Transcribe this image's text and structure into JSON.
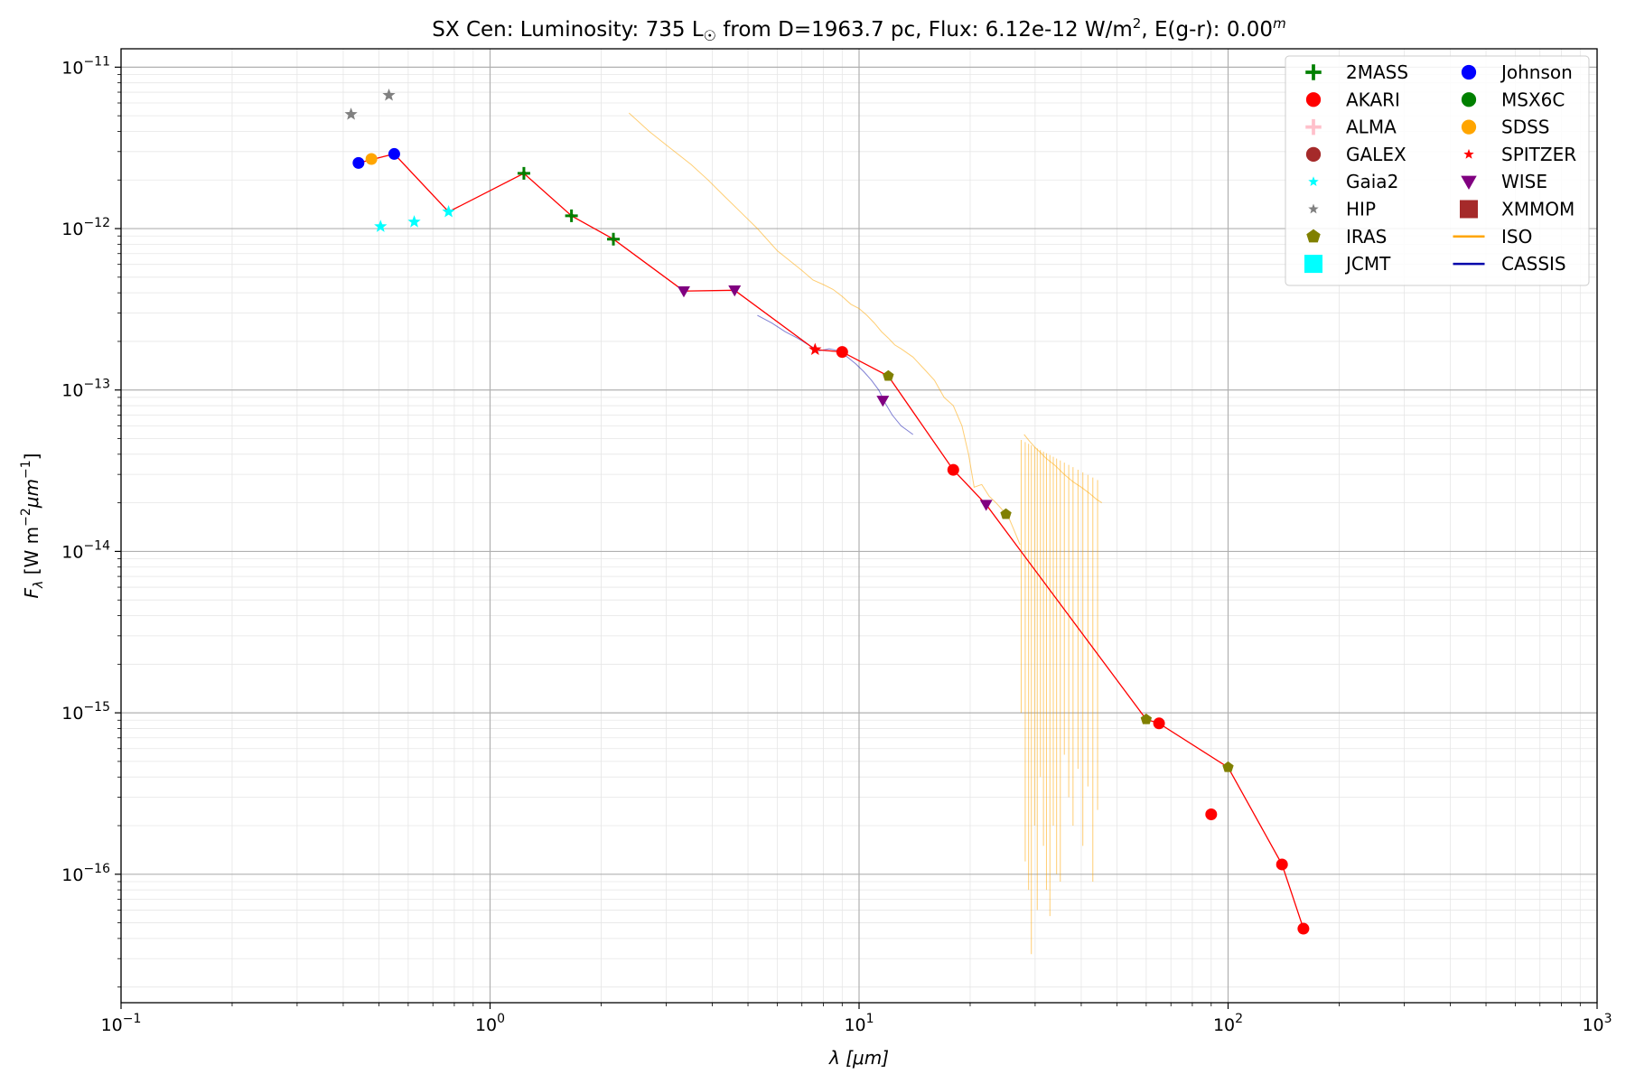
{
  "chart_data": {
    "type": "scatter",
    "title": {
      "star": "SX Cen:",
      "lum_prefix": "Luminosity: 735 L",
      "lum_symbol": "☉",
      "distance": "from D=1963.7 pc, Flux: 6.12e-12 W/m",
      "flux_unit_exp": "2",
      "ext_prefix": ", E(g-r): 0.00",
      "ext_exp": "m"
    },
    "xlabel": {
      "symbol": "λ",
      "unit": "[μm]"
    },
    "ylabel": {
      "symbol": "F",
      "sub": "λ",
      "unit1": "[W m",
      "exp1": "−2",
      "unit2": "μm",
      "exp2": "−1",
      "close": "]"
    },
    "x_scale": "log",
    "y_scale": "log",
    "xlim": [
      0.1,
      1000
    ],
    "ylim": [
      1.6e-17,
      1.3e-11
    ],
    "grid": true,
    "legend_position": "top-right",
    "x_ticks": [
      {
        "value": 0.1,
        "base": "10",
        "exp": "−1"
      },
      {
        "value": 1,
        "base": "10",
        "exp": "0"
      },
      {
        "value": 10,
        "base": "10",
        "exp": "1"
      },
      {
        "value": 100,
        "base": "10",
        "exp": "2"
      },
      {
        "value": 1000,
        "base": "10",
        "exp": "3"
      }
    ],
    "y_ticks": [
      {
        "value": 1e-16,
        "base": "10",
        "exp": "−16"
      },
      {
        "value": 1e-15,
        "base": "10",
        "exp": "−15"
      },
      {
        "value": 1e-14,
        "base": "10",
        "exp": "−14"
      },
      {
        "value": 1e-13,
        "base": "10",
        "exp": "−13"
      },
      {
        "value": 1e-12,
        "base": "10",
        "exp": "−12"
      },
      {
        "value": 1e-11,
        "base": "10",
        "exp": "−11"
      }
    ],
    "legend": [
      {
        "label": "2MASS",
        "color": "#008000",
        "marker": "plus"
      },
      {
        "label": "AKARI",
        "color": "#ff0000",
        "marker": "circle"
      },
      {
        "label": "ALMA",
        "color": "#ffc0cb",
        "marker": "plus"
      },
      {
        "label": "GALEX",
        "color": "#a52a2a",
        "marker": "circle"
      },
      {
        "label": "Gaia2",
        "color": "#00ffff",
        "marker": "star-small"
      },
      {
        "label": "HIP",
        "color": "#808080",
        "marker": "star-small"
      },
      {
        "label": "IRAS",
        "color": "#808000",
        "marker": "pentagon"
      },
      {
        "label": "JCMT",
        "color": "#00ffff",
        "marker": "square"
      },
      {
        "label": "Johnson",
        "color": "#0000ff",
        "marker": "circle"
      },
      {
        "label": "MSX6C",
        "color": "#008000",
        "marker": "circle"
      },
      {
        "label": "SDSS",
        "color": "#ffa500",
        "marker": "circle"
      },
      {
        "label": "SPITZER",
        "color": "#ff0000",
        "marker": "star-small"
      },
      {
        "label": "WISE",
        "color": "#800080",
        "marker": "triangle-down"
      },
      {
        "label": "XMMOM",
        "color": "#a52a2a",
        "marker": "square"
      },
      {
        "label": "ISO",
        "color": "#ffa500",
        "marker": "line"
      },
      {
        "label": "CASSIS",
        "color": "#0000aa",
        "marker": "line"
      }
    ],
    "series": [
      {
        "name": "2MASS",
        "color": "#008000",
        "marker": "plus",
        "x": [
          1.235,
          1.662,
          2.159
        ],
        "y": [
          2.2e-12,
          1.2e-12,
          8.6e-13
        ]
      },
      {
        "name": "AKARI",
        "color": "#ff0000",
        "marker": "circle",
        "x": [
          9,
          18,
          65,
          90,
          140,
          160
        ],
        "y": [
          1.72e-13,
          3.2e-14,
          8.6e-16,
          2.35e-16,
          1.15e-16,
          4.6e-17
        ]
      },
      {
        "name": "Gaia2",
        "color": "#00ffff",
        "marker": "star-small",
        "x": [
          0.505,
          0.623,
          0.772
        ],
        "y": [
          1.03e-12,
          1.1e-12,
          1.27e-12
        ]
      },
      {
        "name": "HIP",
        "color": "#808080",
        "marker": "star-small",
        "x": [
          0.42,
          0.532
        ],
        "y": [
          5.1e-12,
          6.7e-12
        ]
      },
      {
        "name": "IRAS",
        "color": "#808000",
        "marker": "pentagon",
        "x": [
          12,
          25,
          60,
          100
        ],
        "y": [
          1.22e-13,
          1.7e-14,
          9.1e-16,
          4.6e-16
        ]
      },
      {
        "name": "Johnson",
        "color": "#0000ff",
        "marker": "circle",
        "x": [
          0.44,
          0.55
        ],
        "y": [
          2.55e-12,
          2.9e-12
        ]
      },
      {
        "name": "SDSS",
        "color": "#ffa500",
        "marker": "circle",
        "x": [
          0.477
        ],
        "y": [
          2.7e-12
        ]
      },
      {
        "name": "SPITZER",
        "color": "#ff0000",
        "marker": "star-small",
        "x": [
          7.6
        ],
        "y": [
          1.78e-13
        ]
      },
      {
        "name": "WISE",
        "color": "#800080",
        "marker": "triangle-down",
        "x": [
          3.35,
          4.6,
          11.6,
          22.1
        ],
        "y": [
          4.1e-13,
          4.15e-13,
          8.6e-14,
          1.95e-14
        ]
      }
    ],
    "sed_line": {
      "color": "#ff0000",
      "x": [
        0.44,
        0.55,
        0.772,
        1.235,
        1.662,
        2.159,
        3.35,
        4.6,
        7.6,
        9,
        12,
        18,
        22.1,
        60,
        65,
        100,
        140,
        160
      ],
      "y": [
        2.55e-12,
        2.9e-12,
        1.27e-12,
        2.2e-12,
        1.2e-12,
        8.6e-13,
        4.1e-13,
        4.15e-13,
        1.78e-13,
        1.72e-13,
        1.22e-13,
        3.2e-14,
        1.95e-14,
        9.1e-16,
        8.6e-16,
        4.6e-16,
        1.15e-16,
        4.6e-17
      ]
    },
    "spectra": [
      {
        "name": "ISO",
        "color": "#ffa500",
        "x": [
          2.38,
          2.7,
          3.0,
          3.5,
          3.9,
          4.3,
          4.8,
          5.3,
          6.0,
          6.5,
          7.0,
          7.5,
          8.0,
          8.5,
          9.0,
          9.5,
          10.0,
          10.5,
          11.0,
          11.5,
          12.0,
          12.5,
          13.0,
          14.0,
          15.0,
          16.0,
          17.0,
          18.0,
          19.0,
          19.8,
          20.5,
          21.5,
          22.5,
          23.5,
          24.5,
          25.5,
          26.5,
          27.3
        ],
        "y": [
          5.2e-12,
          4e-12,
          3.3e-12,
          2.5e-12,
          2e-12,
          1.6e-12,
          1.25e-12,
          1e-12,
          7.3e-13,
          6.3e-13,
          5.5e-13,
          4.8e-13,
          4.5e-13,
          4.2e-13,
          3.8e-13,
          3.4e-13,
          3.2e-13,
          2.9e-13,
          2.6e-13,
          2.3e-13,
          2.1e-13,
          1.9e-13,
          1.8e-13,
          1.6e-13,
          1.35e-13,
          1.15e-13,
          9e-14,
          8e-14,
          6e-14,
          4e-14,
          2.5e-14,
          2.6e-14,
          2.2e-14,
          2e-14,
          1.8e-14,
          1.6e-14,
          1.3e-14,
          1.1e-14
        ]
      },
      {
        "name": "ISO",
        "color": "#ffa500",
        "x": [
          28.0,
          29.0,
          30.0,
          31.0,
          32.0,
          34.0,
          36.0,
          38.0,
          40.0,
          42.0,
          44.0,
          45.5
        ],
        "y": [
          5.3e-14,
          4.8e-14,
          4.4e-14,
          4.1e-14,
          3.8e-14,
          3.4e-14,
          3e-14,
          2.7e-14,
          2.5e-14,
          2.3e-14,
          2.1e-14,
          2e-14
        ]
      },
      {
        "name": "CASSIS",
        "color": "#0000aa",
        "x": [
          5.3,
          5.8,
          6.3,
          6.8,
          7.3,
          7.8,
          8.3,
          8.8,
          9.3,
          9.8,
          10.3,
          10.8,
          11.3,
          11.8,
          12.3,
          13.0,
          14.0
        ],
        "y": [
          2.9e-13,
          2.6e-13,
          2.3e-13,
          2.1e-13,
          1.9e-13,
          1.75e-13,
          1.8e-13,
          1.75e-13,
          1.6e-13,
          1.45e-13,
          1.3e-13,
          1.15e-13,
          1e-13,
          8.2e-14,
          7e-14,
          6e-14,
          5.3e-14
        ]
      }
    ],
    "iso_noise": {
      "color": "#ffa500",
      "x": [
        27.5,
        28.2,
        28.8,
        29.3,
        29.9,
        30.4,
        31.0,
        31.6,
        32.2,
        32.9,
        33.6,
        34.3,
        35.1,
        36.0,
        37.0,
        38.0,
        39.2,
        40.4,
        41.7,
        43.0,
        44.3
      ],
      "y": [
        1e-15,
        1.2e-16,
        8e-17,
        3.2e-17,
        2e-16,
        6e-17,
        4e-16,
        1.5e-16,
        8e-17,
        5.5e-17,
        2e-16,
        1e-16,
        9e-17,
        5.5e-16,
        3e-16,
        2e-16,
        4.5e-16,
        1.5e-16,
        3.5e-16,
        9e-17,
        2.5e-16
      ]
    }
  }
}
